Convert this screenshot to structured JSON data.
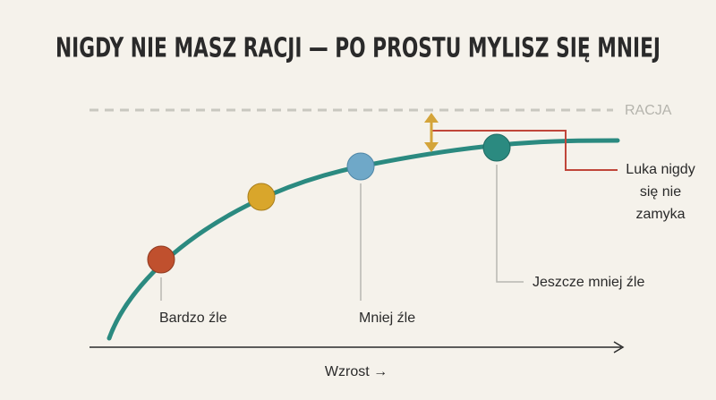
{
  "header": {
    "title": "NIGDY NIE MASZ RACJI — PO PROSTU MYLISZ SIĘ MNIEJ"
  },
  "reference_label": "RACJA",
  "gap_label": [
    "Luka nigdy",
    "się nie",
    "zamyka"
  ],
  "point_labels": [
    "Bardzo źle",
    "Mniej źle",
    "Jeszcze mniej źle"
  ],
  "x_axis_label": "Wzrost →"
}
